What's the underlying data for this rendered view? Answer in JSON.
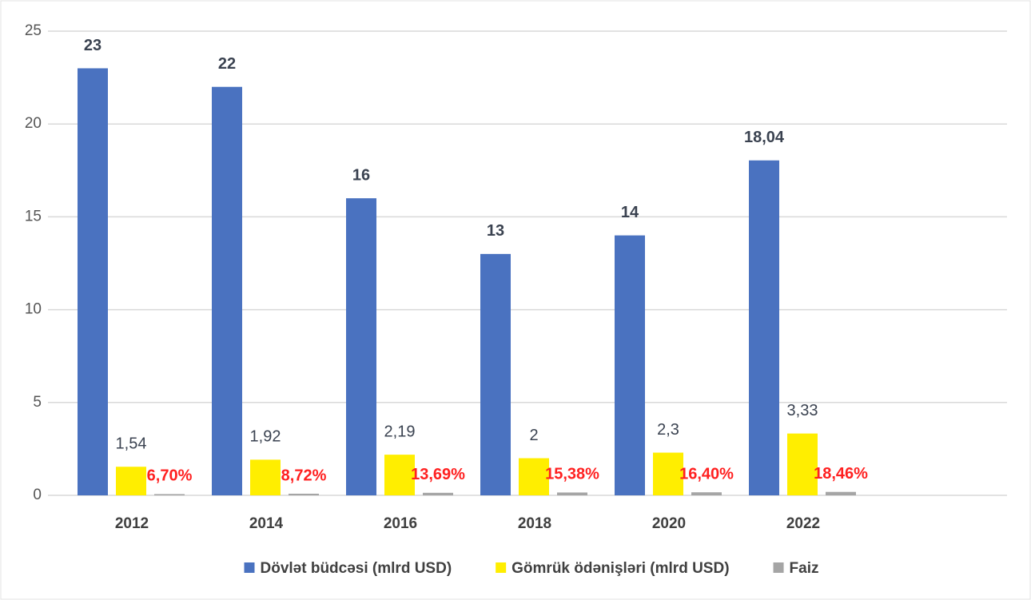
{
  "chart_data": {
    "type": "bar",
    "categories": [
      "2012",
      "2014",
      "2016",
      "2018",
      "2020",
      "2022"
    ],
    "series": [
      {
        "name": "Dövlət büdcəsi (mlrd USD)",
        "color": "#4a72c0",
        "values": [
          23,
          22,
          16,
          13,
          14,
          18.04
        ],
        "value_labels": [
          "23",
          "22",
          "16",
          "13",
          "14",
          "18,04"
        ]
      },
      {
        "name": "Gömrük ödənişləri (mlrd USD)",
        "color": "#ffee00",
        "values": [
          1.54,
          1.92,
          2.19,
          2,
          2.3,
          3.33
        ],
        "value_labels": [
          "1,54",
          "1,92",
          "2,19",
          "2",
          "2,3",
          "3,33"
        ]
      },
      {
        "name": "Faiz",
        "color": "#a5a5a5",
        "values": [
          0.067,
          0.0872,
          0.1369,
          0.1538,
          0.164,
          0.1846
        ],
        "value_labels": [
          "6,70%",
          "8,72%",
          "13,69%",
          "15,38%",
          "16,40%",
          "18,46%"
        ]
      }
    ],
    "ylim": [
      0,
      25
    ],
    "yticks": [
      0,
      5,
      10,
      15,
      20,
      25
    ],
    "grid": true,
    "legend": "bottom"
  }
}
